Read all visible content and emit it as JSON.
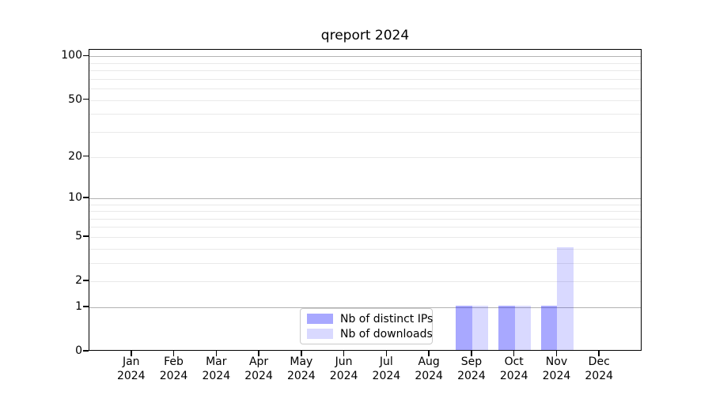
{
  "chart_data": {
    "type": "bar",
    "title": "qreport 2024",
    "categories": [
      "Jan",
      "Feb",
      "Mar",
      "Apr",
      "May",
      "Jun",
      "Jul",
      "Aug",
      "Sep",
      "Oct",
      "Nov",
      "Dec"
    ],
    "category_year": "2024",
    "series": [
      {
        "name": "Nb of distinct IPs",
        "color": "#0000ff",
        "alpha": 0.34,
        "values": [
          0,
          0,
          0,
          0,
          0,
          0,
          0,
          0,
          1,
          1,
          1,
          0
        ]
      },
      {
        "name": "Nb of downloads",
        "color": "#0000ff",
        "alpha": 0.15,
        "values": [
          0,
          0,
          0,
          0,
          0,
          0,
          0,
          0,
          1,
          1,
          4,
          0
        ]
      }
    ],
    "y_axis": {
      "scale": "log1p",
      "ticks": [
        0,
        1,
        2,
        5,
        10,
        20,
        50,
        100
      ],
      "major_gridlines": [
        1,
        10,
        100
      ],
      "minor_gridlines": [
        2,
        3,
        4,
        5,
        6,
        7,
        8,
        9,
        20,
        30,
        40,
        50,
        60,
        70,
        80,
        90
      ],
      "ylim": [
        0,
        111
      ]
    },
    "legend": {
      "position": "lower center"
    },
    "grid": "on",
    "colors": {
      "major_grid": "#b3b3b3",
      "minor_grid": "#e9e9e9",
      "spine": "#000000",
      "background": "#ffffff"
    }
  }
}
